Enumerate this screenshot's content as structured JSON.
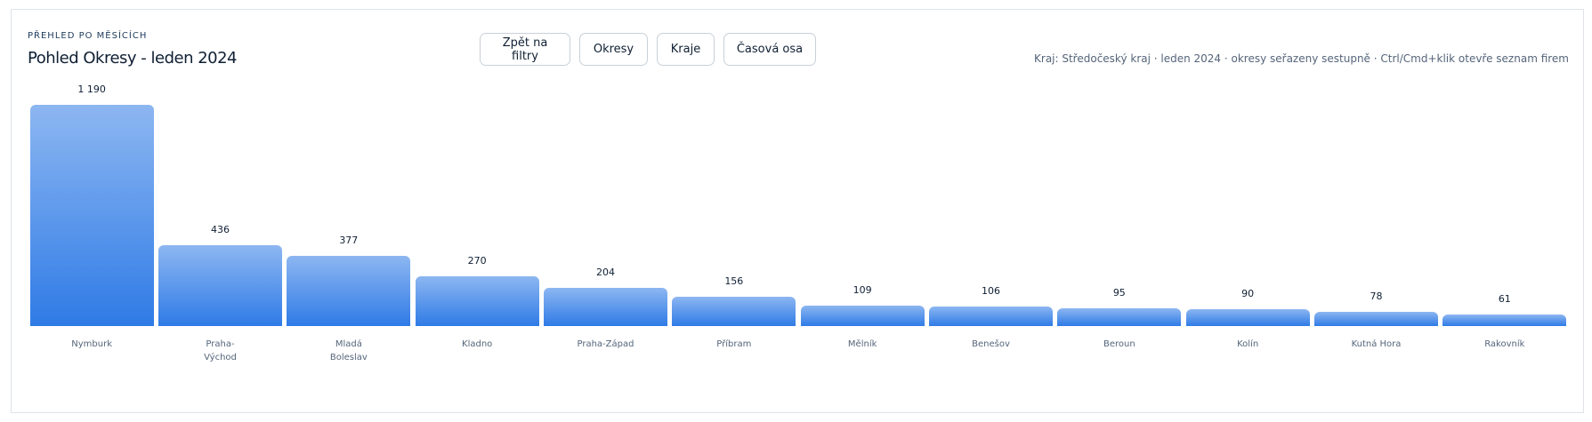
{
  "header": {
    "eyebrow": "PŘEHLED PO MĚSÍCÍCH",
    "title": "Pohled Okresy - leden 2024"
  },
  "buttons": [
    "Zpět na filtry",
    "Okresy",
    "Kraje",
    "Časová osa"
  ],
  "note": "Kraj: Středočeský kraj · leden 2024 · okresy seřazeny sestupně · Ctrl/Cmd+klik otevře seznam firem",
  "chart_data": {
    "type": "bar",
    "color": "#2f7be6",
    "categories": [
      "Nymburk",
      "Praha-Východ",
      "Mladá Boleslav",
      "Kladno",
      "Praha-Západ",
      "Příbram",
      "Mělník",
      "Benešov",
      "Beroun",
      "Kolín",
      "Kutná Hora",
      "Rakovník"
    ],
    "values": [
      1190,
      436,
      377,
      270,
      204,
      156,
      109,
      106,
      95,
      90,
      78,
      61
    ],
    "value_labels": [
      "1 190",
      "436",
      "377",
      "270",
      "204",
      "156",
      "109",
      "106",
      "95",
      "90",
      "78",
      "61"
    ]
  }
}
